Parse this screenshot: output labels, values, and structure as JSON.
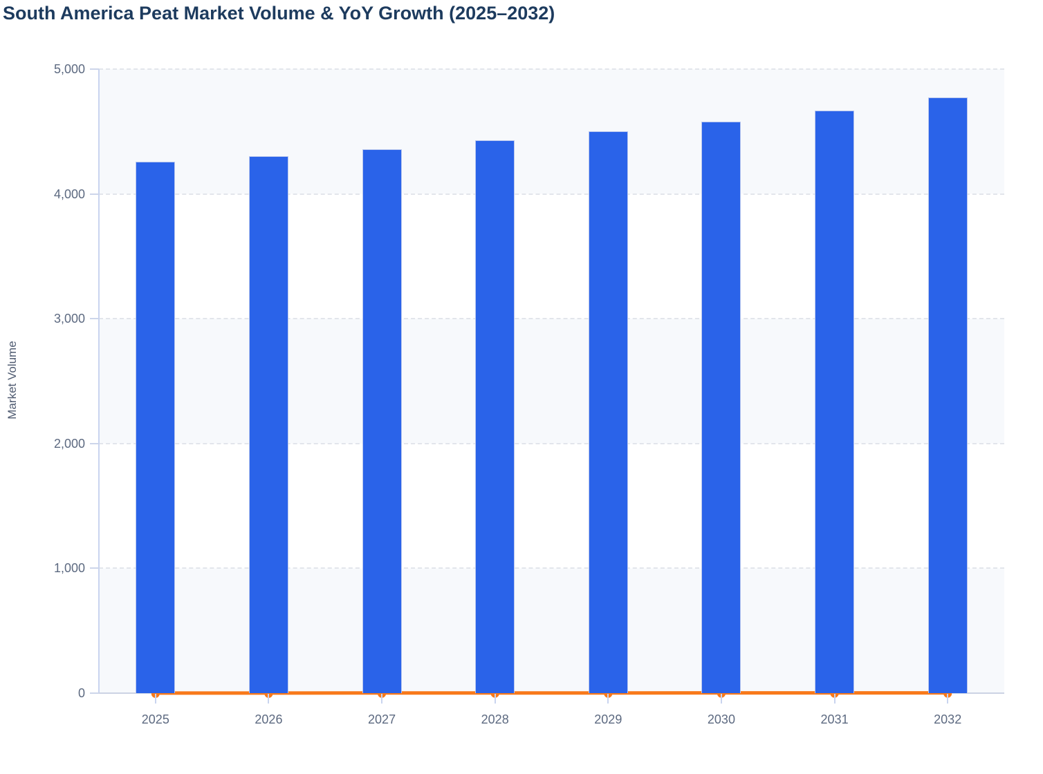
{
  "title": "South America Peat Market Volume & YoY Growth (2025–2032)",
  "y_axis": {
    "label": "Market Volume",
    "tick_labels": [
      "0",
      "1,000",
      "2,000",
      "3,000",
      "4,000",
      "5,000"
    ],
    "tick_values": [
      0,
      1000,
      2000,
      3000,
      4000,
      5000
    ],
    "min": 0,
    "max": 5000
  },
  "x_axis": {
    "tick_labels": [
      "2025",
      "2026",
      "2027",
      "2028",
      "2029",
      "2030",
      "2031",
      "2032"
    ]
  },
  "colors": {
    "bar": "#2a63e9",
    "bar_edge": "#b9c7ee",
    "line": "#f8791a",
    "title_text": "#1d3b5e",
    "axis_tick_text": "#5c6980",
    "axis_title_text": "#4e5a70",
    "gridline": "#e2e5eb",
    "axis_line": "#c9d4ef",
    "band_light": "#f7f9fc",
    "band_white": "#ffffff"
  },
  "chart_data": {
    "type": "bar",
    "title": "South America Peat Market Volume & YoY Growth (2025–2032)",
    "categories": [
      "2025",
      "2026",
      "2027",
      "2028",
      "2029",
      "2030",
      "2031",
      "2032"
    ],
    "series": [
      {
        "name": "Market Volume",
        "type": "bar",
        "color": "#2a63e9",
        "values": [
          4260,
          4300,
          4355,
          4430,
          4500,
          4580,
          4670,
          4775
        ]
      },
      {
        "name": "YoY Growth",
        "type": "line",
        "color": "#f8791a",
        "values": [
          0.9,
          0.9,
          1.3,
          1.7,
          1.6,
          1.8,
          2.0,
          2.3
        ]
      }
    ],
    "xlabel": "",
    "ylabel": "Market Volume",
    "ylim": [
      0,
      5000
    ],
    "yticks": [
      "0",
      "1,000",
      "2,000",
      "3,000",
      "4,000",
      "5,000"
    ],
    "layout_hints": {
      "grid": "horizontal dashed gridlines every 1,000 with alternating light/white horizontal bands",
      "legend": "none",
      "yoy_line": "YoY Growth line drawn along the baseline (secondary axis not shown), round markers at each year"
    }
  }
}
